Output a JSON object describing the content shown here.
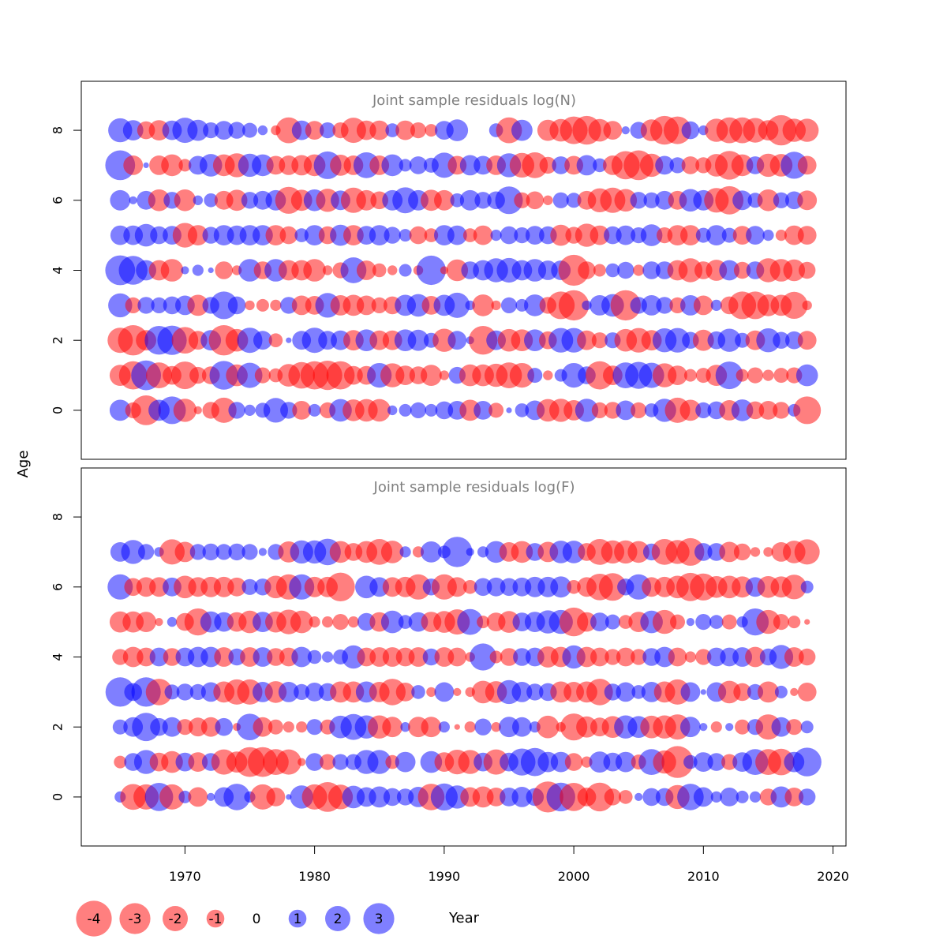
{
  "chart_data": [
    {
      "type": "scatter",
      "subtype": "bubble",
      "title": "Joint sample residuals log(N)",
      "xlabel": "Year",
      "ylabel": "Age",
      "xlim": [
        1962,
        2021
      ],
      "ylim": [
        -1.4,
        9.4
      ],
      "xticks": [
        "1970",
        "1980",
        "1990",
        "2000",
        "2010",
        "2020"
      ],
      "yticks": [
        "0",
        "2",
        "4",
        "6",
        "8"
      ],
      "years": [
        1965,
        1966,
        1967,
        1968,
        1969,
        1970,
        1971,
        1972,
        1973,
        1974,
        1975,
        1976,
        1977,
        1978,
        1979,
        1980,
        1981,
        1982,
        1983,
        1984,
        1985,
        1986,
        1987,
        1988,
        1989,
        1990,
        1991,
        1992,
        1993,
        1994,
        1995,
        1996,
        1997,
        1998,
        1999,
        2000,
        2001,
        2002,
        2003,
        2004,
        2005,
        2006,
        2007,
        2008,
        2009,
        2010,
        2011,
        2012,
        2013,
        2014,
        2015,
        2016,
        2017,
        2018
      ],
      "ages": [
        0,
        1,
        2,
        3,
        4,
        5,
        6,
        7,
        8
      ],
      "residuals": [
        [
          1.4,
          -0.8,
          -2.8,
          1.4,
          2.4,
          -1.7,
          -0.2,
          -0.9,
          -2.0,
          0.9,
          0.4,
          0.7,
          1.9,
          0.9,
          -1.1,
          0.5,
          -0.8,
          1.6,
          -1.5,
          -1.6,
          -1.6,
          0.3,
          0.5,
          0.8,
          0.5,
          1.0,
          1.1,
          -1.4,
          1.1,
          -0.7,
          0.1,
          0.6,
          1.2,
          -1.6,
          -1.7,
          -1.3,
          1.7,
          -0.8,
          -0.9,
          1.2,
          -0.8,
          0.6,
          1.7,
          -2.0,
          -1.4,
          0.8,
          1.0,
          -1.3,
          1.5,
          -1.0,
          -1.1,
          -0.9,
          0.5,
          -2.4
        ],
        [
          -1.4,
          -2.5,
          2.8,
          -2.1,
          -1.1,
          -2.4,
          -0.9,
          -1.0,
          2.6,
          -1.5,
          2.0,
          -0.8,
          -0.6,
          -1.6,
          -2.2,
          -2.5,
          -2.7,
          -2.5,
          -1.1,
          -1.1,
          1.9,
          -1.8,
          -1.2,
          -1.0,
          -1.4,
          -0.3,
          0.9,
          -1.5,
          -1.5,
          -1.7,
          -2.1,
          -1.9,
          0.7,
          -0.3,
          0.5,
          1.9,
          1.0,
          -2.5,
          -1.2,
          2.1,
          2.3,
          2.0,
          -1.8,
          -1.2,
          -0.5,
          -0.7,
          -1.4,
          2.4,
          -0.5,
          -0.8,
          -0.4,
          -0.7,
          -0.8,
          1.5
        ],
        [
          -2.0,
          -2.9,
          -1.3,
          2.6,
          2.7,
          -2.2,
          -1.1,
          1.3,
          -2.9,
          -1.6,
          2.0,
          1.1,
          -0.6,
          0.1,
          1.1,
          2.0,
          1.1,
          1.2,
          -1.3,
          1.5,
          -1.2,
          -1.2,
          1.5,
          1.4,
          0.7,
          -1.7,
          1.1,
          0.2,
          -2.6,
          1.2,
          -1.6,
          -1.5,
          1.5,
          -1.0,
          1.9,
          1.9,
          -1.2,
          -0.8,
          0.8,
          -1.6,
          -1.9,
          -1.3,
          1.8,
          1.9,
          0.9,
          -1.4,
          1.0,
          1.7,
          0.7,
          -1.2,
          1.8,
          0.9,
          1.0,
          -1.1
        ],
        [
          1.8,
          -0.8,
          0.9,
          0.8,
          1.0,
          1.2,
          -1.4,
          0.9,
          2.4,
          1.0,
          -0.3,
          -0.5,
          -0.4,
          0.9,
          -1.2,
          -1.1,
          1.9,
          -1.3,
          -1.4,
          -1.2,
          -0.8,
          -1.0,
          1.4,
          1.6,
          -1.1,
          1.4,
          2.0,
          0.3,
          -1.5,
          -0.3,
          0.8,
          0.5,
          1.5,
          -0.9,
          -2.4,
          -2.9,
          0.3,
          1.3,
          1.6,
          -2.9,
          0.9,
          1.3,
          0.9,
          -0.8,
          1.3,
          -1.2,
          0.4,
          -1.0,
          -2.4,
          -2.4,
          -1.5,
          -1.4,
          -2.3,
          -0.3
        ],
        [
          2.8,
          2.6,
          1.3,
          -1.3,
          -1.6,
          0.2,
          0.4,
          0.1,
          -1.0,
          -0.3,
          1.6,
          -1.0,
          1.6,
          -1.3,
          -1.3,
          -1.6,
          -0.3,
          -0.8,
          2.1,
          -1.2,
          -0.6,
          -0.3,
          0.5,
          -0.3,
          2.7,
          -0.2,
          -1.5,
          1.0,
          1.3,
          1.8,
          1.9,
          1.3,
          1.6,
          1.2,
          1.2,
          -3.0,
          -1.0,
          -0.5,
          0.6,
          0.9,
          -0.4,
          1.0,
          1.0,
          -1.3,
          -1.8,
          -1.0,
          -1.4,
          1.3,
          -0.9,
          1.0,
          -1.8,
          -1.6,
          -1.5,
          -0.9
        ],
        [
          1.2,
          1.2,
          1.6,
          1.0,
          1.1,
          -1.9,
          -1.3,
          0.9,
          1.3,
          1.2,
          1.3,
          1.3,
          -1.3,
          -1.0,
          0.6,
          1.3,
          -1.0,
          1.4,
          -1.3,
          1.1,
          1.3,
          0.9,
          0.5,
          -1.0,
          -0.6,
          1.3,
          1.2,
          -0.6,
          -1.2,
          0.4,
          1.0,
          0.8,
          1.1,
          1.0,
          -1.4,
          -0.9,
          -1.7,
          -1.2,
          1.0,
          1.2,
          0.8,
          1.5,
          -0.8,
          -1.3,
          -1.3,
          0.7,
          1.3,
          0.7,
          -1.1,
          1.1,
          0.4,
          -0.4,
          -1.2,
          -1.1
        ],
        [
          1.3,
          0.2,
          1.1,
          -1.5,
          0.9,
          -1.5,
          0.3,
          0.6,
          -1.1,
          -1.4,
          0.9,
          1.1,
          1.3,
          -2.3,
          -1.4,
          1.5,
          -1.7,
          1.2,
          -2.0,
          -1.3,
          -1.0,
          1.3,
          2.1,
          1.3,
          -1.4,
          -1.3,
          0.6,
          1.3,
          0.9,
          1.0,
          2.4,
          -0.8,
          -1.0,
          -0.3,
          0.8,
          0.7,
          -1.1,
          -1.8,
          -2.0,
          -1.6,
          0.9,
          0.8,
          1.1,
          -1.1,
          1.6,
          1.3,
          -1.9,
          -2.5,
          1.2,
          0.7,
          -1.5,
          0.8,
          1.0,
          -1.2
        ],
        [
          2.8,
          -1.2,
          0.1,
          -1.2,
          -1.5,
          -0.5,
          1.1,
          1.6,
          -1.5,
          -1.8,
          1.7,
          1.5,
          -1.1,
          -1.2,
          -1.3,
          -1.5,
          2.4,
          -1.4,
          -1.2,
          2.1,
          -1.2,
          1.5,
          0.5,
          1.0,
          0.7,
          2.0,
          -1.1,
          1.3,
          1.1,
          -1.2,
          1.8,
          -1.9,
          -2.1,
          -0.9,
          1.0,
          -1.1,
          1.3,
          0.6,
          -1.2,
          -2.5,
          -2.8,
          -1.7,
          1.1,
          0.8,
          -1.0,
          -0.8,
          -1.6,
          -2.6,
          -1.5,
          1.0,
          -1.7,
          -1.6,
          2.3,
          -1.1
        ],
        [
          1.8,
          1.3,
          -1.0,
          -1.3,
          1.2,
          2.0,
          1.4,
          0.8,
          1.1,
          0.9,
          0.7,
          0.3,
          -0.3,
          -2.1,
          1.2,
          -1.1,
          0.8,
          -0.8,
          -2.0,
          -1.2,
          -1.2,
          0.6,
          -1.2,
          -0.8,
          -0.5,
          1.1,
          1.5,
          0.0,
          0.0,
          0.6,
          -2.1,
          1.4,
          0.0,
          -1.4,
          -1.6,
          -2.4,
          -2.6,
          -1.6,
          -1.1,
          0.2,
          0.9,
          -1.5,
          -2.6,
          -2.4,
          1.0,
          0.3,
          -1.7,
          -2.1,
          -2.1,
          -1.9,
          -1.3,
          -2.9,
          -1.7,
          -1.7
        ]
      ]
    },
    {
      "type": "scatter",
      "subtype": "bubble",
      "title": "Joint sample residuals log(F)",
      "xlabel": "Year",
      "ylabel": "Age",
      "xlim": [
        1962,
        2021
      ],
      "ylim": [
        -1.4,
        9.4
      ],
      "xticks": [
        "1970",
        "1980",
        "1990",
        "2000",
        "2010",
        "2020"
      ],
      "yticks": [
        "0",
        "2",
        "4",
        "6",
        "8"
      ],
      "years": [
        1965,
        1966,
        1967,
        1968,
        1969,
        1970,
        1971,
        1972,
        1973,
        1974,
        1975,
        1976,
        1977,
        1978,
        1979,
        1980,
        1981,
        1982,
        1983,
        1984,
        1985,
        1986,
        1987,
        1988,
        1989,
        1990,
        1991,
        1992,
        1993,
        1994,
        1995,
        1996,
        1997,
        1998,
        1999,
        2000,
        2001,
        2002,
        2003,
        2004,
        2005,
        2006,
        2007,
        2008,
        2009,
        2010,
        2011,
        2012,
        2013,
        2014,
        2015,
        2016,
        2017,
        2018
      ],
      "ages": [
        0,
        1,
        2,
        3,
        4,
        5,
        6,
        7
      ],
      "residuals": [
        [
          0.4,
          -2.1,
          -2.0,
          2.5,
          -2.0,
          0.5,
          -1.2,
          0.2,
          1.2,
          2.2,
          0.4,
          -2.0,
          -1.1,
          0.1,
          1.7,
          -2.0,
          -2.8,
          -1.9,
          1.6,
          1.2,
          1.4,
          1.0,
          0.9,
          1.3,
          -2.2,
          2.3,
          1.7,
          -1.2,
          -1.4,
          -1.1,
          1.1,
          1.3,
          1.0,
          -3.0,
          2.6,
          -2.5,
          -1.1,
          -2.6,
          -0.9,
          -0.6,
          0.2,
          1.0,
          1.0,
          -1.8,
          2.2,
          1.2,
          0.4,
          1.1,
          0.5,
          0.4,
          -0.9,
          1.4,
          -1.1,
          0.9
        ],
        [
          -0.5,
          1.0,
          1.8,
          -1.1,
          -1.5,
          1.1,
          -1.2,
          1.0,
          -2.0,
          -1.4,
          -2.8,
          -2.8,
          -2.1,
          -2.0,
          -0.2,
          1.0,
          -0.8,
          0.8,
          0.8,
          1.8,
          1.8,
          -0.6,
          1.3,
          0.0,
          1.5,
          -1.2,
          -1.9,
          -1.8,
          1.1,
          -2.0,
          1.1,
          2.3,
          2.5,
          1.3,
          1.3,
          -1.0,
          -0.4,
          1.4,
          1.1,
          1.3,
          -0.7,
          2.1,
          -1.7,
          -3.2,
          0.6,
          1.2,
          1.0,
          -0.8,
          1.2,
          2.1,
          -2.1,
          -2.2,
          1.3,
          2.6
        ],
        [
          0.7,
          1.2,
          2.5,
          1.0,
          1.2,
          -0.8,
          -1.1,
          -1.2,
          1.0,
          -0.2,
          2.2,
          -1.2,
          -0.7,
          -0.4,
          -0.4,
          0.8,
          -0.7,
          1.6,
          2.1,
          1.7,
          -1.7,
          -1.3,
          0.3,
          -1.3,
          -1.3,
          0.4,
          -0.1,
          -0.4,
          0.9,
          -0.3,
          1.3,
          1.2,
          0.4,
          -1.6,
          -0.3,
          -2.3,
          -1.4,
          -1.1,
          -1.5,
          1.7,
          1.5,
          -1.6,
          -1.7,
          -2.0,
          1.3,
          0.2,
          -0.4,
          0.2,
          -0.7,
          0.8,
          -2.0,
          1.2,
          -0.8,
          0.5
        ],
        [
          2.7,
          1.0,
          2.7,
          -2.2,
          0.7,
          0.9,
          0.8,
          1.2,
          -1.4,
          -2.0,
          -2.0,
          1.3,
          -1.5,
          1.3,
          0.8,
          1.1,
          1.0,
          -1.4,
          -1.4,
          1.4,
          -1.3,
          -2.2,
          -1.1,
          0.6,
          -0.3,
          1.2,
          -0.2,
          -0.3,
          -1.6,
          -1.5,
          1.8,
          1.3,
          0.9,
          1.0,
          -1.4,
          -1.3,
          -1.4,
          -2.2,
          0.9,
          1.2,
          0.6,
          1.3,
          -1.4,
          -2.0,
          1.2,
          0.1,
          1.2,
          -1.6,
          -1.0,
          0.8,
          -1.4,
          0.5,
          -0.2,
          -1.1
        ],
        [
          -0.8,
          -1.3,
          -1.1,
          1.1,
          -1.0,
          1.1,
          1.3,
          1.3,
          -1.2,
          0.9,
          -1.2,
          1.2,
          -1.0,
          -1.1,
          1.3,
          0.6,
          0.4,
          0.7,
          1.7,
          -1.1,
          -1.2,
          -1.2,
          -1.1,
          -1.2,
          0.9,
          -1.2,
          -1.1,
          -0.3,
          2.3,
          -0.5,
          -1.0,
          1.0,
          1.1,
          -1.4,
          -1.3,
          1.7,
          -1.3,
          -1.1,
          -0.8,
          -1.1,
          -0.8,
          1.0,
          1.3,
          -1.1,
          -0.4,
          -0.8,
          1.1,
          1.1,
          1.2,
          -1.3,
          0.9,
          1.8,
          -1.2,
          -0.9
        ],
        [
          -1.4,
          -1.4,
          -1.3,
          -0.2,
          0.3,
          -1.0,
          -2.3,
          1.4,
          1.2,
          -1.2,
          -1.6,
          1.3,
          -1.4,
          -1.9,
          -1.6,
          -0.4,
          -0.4,
          -0.8,
          -0.4,
          1.0,
          -1.2,
          1.6,
          0.6,
          1.2,
          -1.3,
          -1.5,
          -2.0,
          2.1,
          -0.5,
          -1.1,
          -1.5,
          1.1,
          1.3,
          1.7,
          1.8,
          -2.6,
          -1.2,
          1.1,
          0.7,
          -0.6,
          -1.3,
          1.6,
          -1.8,
          -0.7,
          0.2,
          0.8,
          0.6,
          -0.7,
          0.4,
          2.3,
          -1.8,
          -0.8,
          -0.5,
          -0.1
        ],
        [
          2.0,
          -1.0,
          -1.2,
          -1.2,
          1.1,
          -1.6,
          -1.2,
          -1.3,
          -1.3,
          -1.1,
          0.8,
          0.9,
          -1.6,
          -2.0,
          2.0,
          -1.3,
          -1.3,
          -2.6,
          0.0,
          1.6,
          1.2,
          -1.2,
          -1.3,
          -2.0,
          0.9,
          -2.0,
          -1.2,
          -0.6,
          1.0,
          1.1,
          1.0,
          1.1,
          1.3,
          1.3,
          1.4,
          -0.6,
          -1.2,
          -2.2,
          -2.4,
          0.9,
          2.0,
          -1.2,
          -1.3,
          -1.6,
          -2.5,
          -2.3,
          -1.5,
          -1.6,
          -1.4,
          1.2,
          -1.5,
          -1.4,
          -1.9,
          0.5
        ],
        [
          1.2,
          1.8,
          0.8,
          0.3,
          -2.0,
          -1.3,
          0.8,
          0.9,
          0.8,
          0.9,
          0.8,
          0.2,
          0.8,
          -1.4,
          1.7,
          1.7,
          2.2,
          -1.5,
          -1.0,
          -1.5,
          -2.1,
          -1.6,
          0.4,
          -0.4,
          1.4,
          0.5,
          2.9,
          0.2,
          0.4,
          1.5,
          -1.2,
          -1.5,
          1.0,
          -1.3,
          1.6,
          1.6,
          -1.0,
          -2.1,
          -1.7,
          -1.7,
          -1.5,
          0.9,
          -2.1,
          -1.8,
          -2.4,
          1.0,
          1.0,
          -1.3,
          -0.9,
          -0.3,
          -0.3,
          -1.2,
          -1.6,
          -2.0
        ]
      ]
    }
  ],
  "colors": {
    "negative": "#ff0000",
    "positive": "#0000ff",
    "bubble_alpha": 0.5,
    "title": "#808080",
    "axis": "#000000"
  },
  "legend": {
    "items": [
      {
        "label": "-4",
        "value": -4
      },
      {
        "label": "-3",
        "value": -3
      },
      {
        "label": "-2",
        "value": -2
      },
      {
        "label": "-1",
        "value": -1
      },
      {
        "label": "0",
        "value": 0
      },
      {
        "label": "1",
        "value": 1
      },
      {
        "label": "2",
        "value": 2
      },
      {
        "label": "3",
        "value": 3
      }
    ],
    "xlabel": "Year"
  },
  "shared_ylabel": "Age"
}
